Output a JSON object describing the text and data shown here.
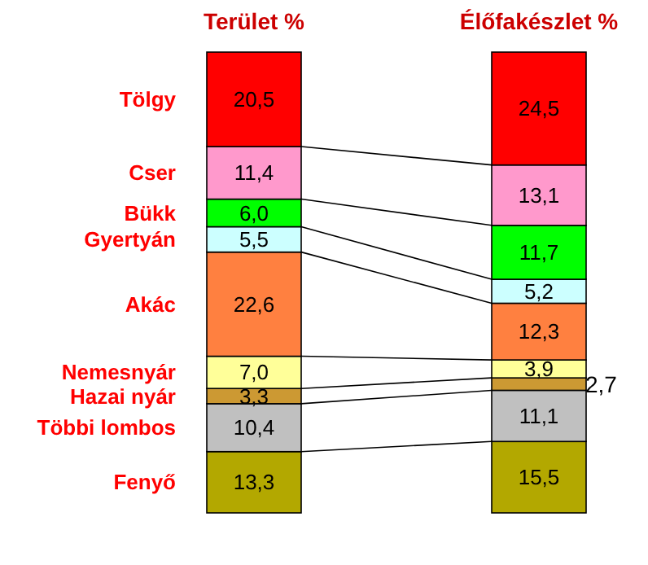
{
  "chart_data": {
    "type": "bar",
    "stacked": true,
    "categories": [
      "Terület %",
      "Élőfakészlet %"
    ],
    "ylim": [
      0,
      100
    ],
    "series": [
      {
        "name": "Fenyő",
        "color": "#b3a800",
        "values": [
          13.3,
          15.5
        ],
        "value_labels": [
          "13,3",
          "15,5"
        ]
      },
      {
        "name": "Többi lombos",
        "color": "#c0c0c0",
        "values": [
          10.4,
          11.1
        ],
        "value_labels": [
          "10,4",
          "11,1"
        ]
      },
      {
        "name": "Hazai nyár",
        "color": "#cc9933",
        "values": [
          3.3,
          2.7
        ],
        "value_labels": [
          "3,3",
          "2,7"
        ]
      },
      {
        "name": "Nemesnyár",
        "color": "#ffff99",
        "values": [
          7.0,
          3.9
        ],
        "value_labels": [
          "7,0",
          "3,9"
        ]
      },
      {
        "name": "Akác",
        "color": "#ff8040",
        "values": [
          22.6,
          12.3
        ],
        "value_labels": [
          "22,6",
          "12,3"
        ]
      },
      {
        "name": "Gyertyán",
        "color": "#ccffff",
        "values": [
          5.5,
          5.2
        ],
        "value_labels": [
          "5,5",
          "5,2"
        ]
      },
      {
        "name": "Bükk",
        "color": "#00ff00",
        "values": [
          6.0,
          11.7
        ],
        "value_labels": [
          "6,0",
          "11,7"
        ]
      },
      {
        "name": "Cser",
        "color": "#ff99cc",
        "values": [
          11.4,
          13.1
        ],
        "value_labels": [
          "11,4",
          "13,1"
        ]
      },
      {
        "name": "Tölgy",
        "color": "#ff0000",
        "values": [
          20.5,
          24.5
        ],
        "value_labels": [
          "20,5",
          "24,5"
        ]
      }
    ]
  }
}
